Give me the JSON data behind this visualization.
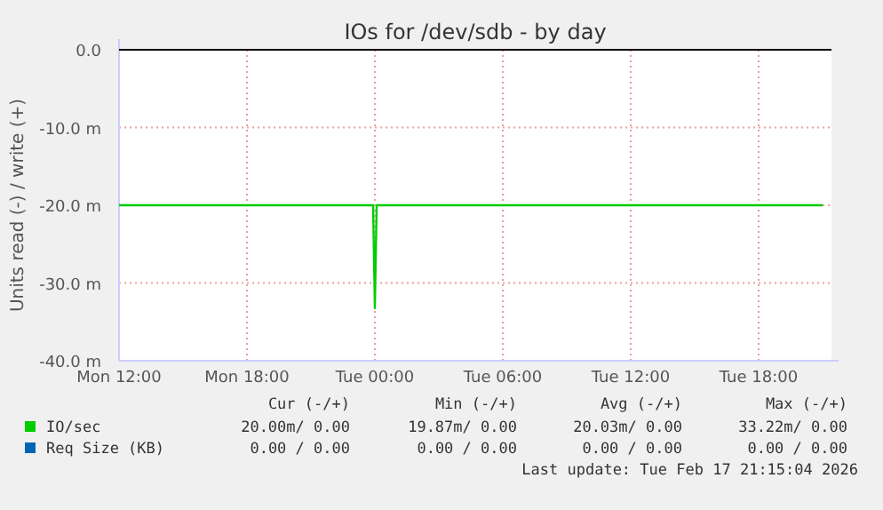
{
  "chart_data": {
    "type": "line",
    "title": "IOs for /dev/sdb - by day",
    "ylabel": "Units read (-) / write (+)",
    "x": [
      "2026-02-16T12:00",
      "2026-02-16T13:00",
      "2026-02-16T14:00",
      "2026-02-16T15:00",
      "2026-02-16T16:00",
      "2026-02-16T17:00",
      "2026-02-16T18:00",
      "2026-02-16T19:00",
      "2026-02-16T20:00",
      "2026-02-16T21:00",
      "2026-02-16T22:00",
      "2026-02-16T23:00",
      "2026-02-16T23:55",
      "2026-02-17T00:00",
      "2026-02-17T00:05",
      "2026-02-17T01:00",
      "2026-02-17T02:00",
      "2026-02-17T03:00",
      "2026-02-17T04:00",
      "2026-02-17T05:00",
      "2026-02-17T06:00",
      "2026-02-17T07:00",
      "2026-02-17T08:00",
      "2026-02-17T09:00",
      "2026-02-17T10:00",
      "2026-02-17T11:00",
      "2026-02-17T12:00",
      "2026-02-17T13:00",
      "2026-02-17T14:00",
      "2026-02-17T15:00",
      "2026-02-17T16:00",
      "2026-02-17T17:00",
      "2026-02-17T18:00",
      "2026-02-17T19:00",
      "2026-02-17T20:00",
      "2026-02-17T21:00"
    ],
    "series": [
      {
        "name": "IO/sec",
        "color": "#00cc00",
        "values": [
          -20,
          -20,
          -20,
          -20,
          -20,
          -20,
          -20,
          -20,
          -20,
          -20,
          -20,
          -20,
          -20,
          -33.22,
          -20,
          -20,
          -20,
          -20,
          -20,
          -20,
          -20,
          -20,
          -20,
          -20,
          -20,
          -20,
          -20,
          -20,
          -20,
          -20,
          -20,
          -20,
          -20,
          -20,
          -20,
          -20
        ]
      },
      {
        "name": "Req Size (KB)",
        "color": "#0066b3",
        "values": [
          null,
          null,
          null,
          null,
          null,
          null,
          null,
          null,
          null,
          null,
          null,
          null,
          null,
          null,
          null,
          null,
          null,
          null,
          null,
          null,
          null,
          null,
          null,
          null,
          null,
          null,
          null,
          null,
          null,
          null,
          null,
          null,
          null,
          null,
          null,
          null
        ]
      }
    ],
    "xlim": [
      "2026-02-16T12:00",
      "2026-02-17T21:25"
    ],
    "xticks": [
      {
        "value": "2026-02-16T12:00",
        "label": "Mon 12:00"
      },
      {
        "value": "2026-02-16T18:00",
        "label": "Mon 18:00"
      },
      {
        "value": "2026-02-17T00:00",
        "label": "Tue 00:00"
      },
      {
        "value": "2026-02-17T06:00",
        "label": "Tue 06:00"
      },
      {
        "value": "2026-02-17T12:00",
        "label": "Tue 12:00"
      },
      {
        "value": "2026-02-17T18:00",
        "label": "Tue 18:00"
      }
    ],
    "ylim": [
      -40,
      0
    ],
    "yticks": [
      {
        "value": -40,
        "label": "-40.0 m"
      },
      {
        "value": -30,
        "label": "-30.0 m"
      },
      {
        "value": -20,
        "label": "-20.0 m"
      },
      {
        "value": -10,
        "label": "-10.0 m"
      },
      {
        "value": 0,
        "label": "0.0"
      }
    ],
    "grid": true,
    "legend": "bottom",
    "line_style": "solid",
    "marker": "none",
    "ref_lines": [
      {
        "axis": "y",
        "value": 0,
        "color": "#000000"
      }
    ],
    "annotations": [
      "Cur (-/+)",
      "Min (-/+)",
      "Avg (-/+)",
      "Max (-/+)",
      "20.00m/ 0.00",
      "19.87m/ 0.00",
      "20.03m/ 0.00",
      "33.22m/ 0.00",
      "0.00 / 0.00",
      "0.00 / 0.00",
      "0.00 / 0.00",
      "0.00 / 0.00",
      "Last update: Tue Feb 17 21:15:04 2026"
    ]
  }
}
